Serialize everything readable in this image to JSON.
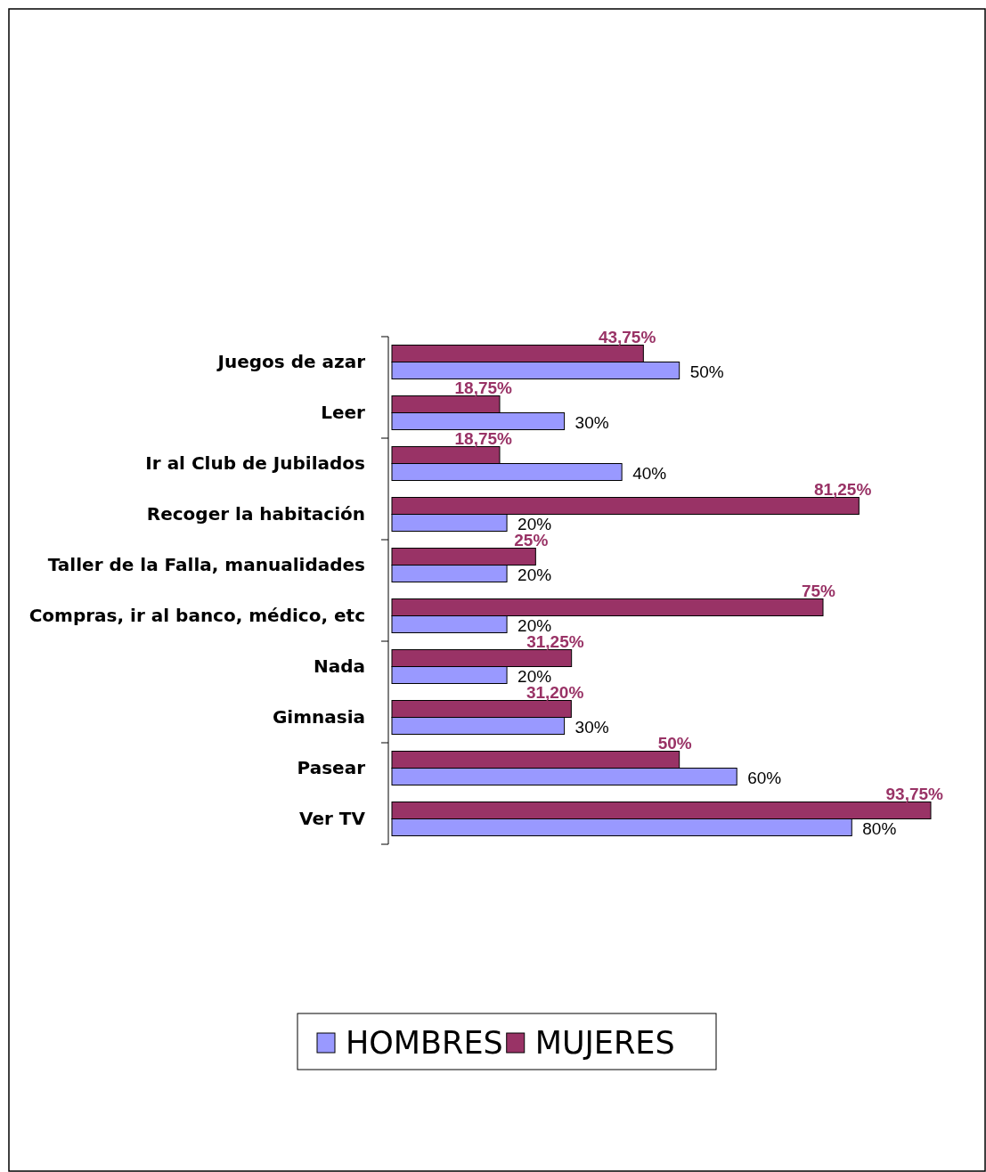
{
  "chart_data": {
    "type": "bar",
    "orientation": "horizontal",
    "legend": "bottom",
    "categories": [
      "Juegos de azar",
      "Leer",
      "Ir al Club de Jubilados",
      "Recoger la habitación",
      "Taller de la Falla, manualidades",
      "Compras, ir al banco, médico, etc",
      "Nada",
      "Gimnasia",
      "Pasear",
      "Ver TV"
    ],
    "series": [
      {
        "name": "HOMBRES",
        "color": "#9999ff",
        "values": [
          50,
          30,
          40,
          20,
          20,
          20,
          20,
          30,
          60,
          80
        ],
        "value_labels": [
          "50%",
          "30%",
          "40%",
          "20%",
          "20%",
          "20%",
          "20%",
          "30%",
          "60%",
          "80%"
        ]
      },
      {
        "name": "MUJERES",
        "color": "#993366",
        "values": [
          43.75,
          18.75,
          18.75,
          81.25,
          25,
          75,
          31.25,
          31.2,
          50,
          93.75
        ],
        "value_labels": [
          "43,75%",
          "18,75%",
          "18,75%",
          "81,25%",
          "25%",
          "75%",
          "31,25%",
          "31,20%",
          "50%",
          "93,75%"
        ]
      }
    ]
  }
}
